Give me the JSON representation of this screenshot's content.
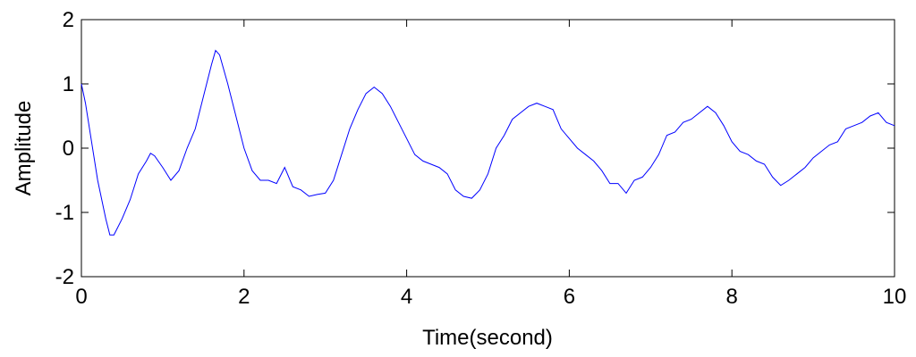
{
  "chart_data": {
    "type": "line",
    "xlabel": "Time(second)",
    "ylabel": "Amplitude",
    "xlim": [
      0,
      10
    ],
    "xticks": [
      0,
      2,
      4,
      6,
      8,
      10
    ],
    "ylim": [
      -2,
      2
    ],
    "yticks": [
      -2,
      -1,
      0,
      1,
      2
    ],
    "grid": false,
    "series": [
      {
        "color": "#0000ff",
        "x": [
          0,
          0.05,
          0.1,
          0.2,
          0.3,
          0.35,
          0.4,
          0.5,
          0.6,
          0.7,
          0.8,
          0.85,
          0.9,
          1.0,
          1.1,
          1.2,
          1.3,
          1.4,
          1.5,
          1.6,
          1.65,
          1.7,
          1.8,
          1.9,
          2.0,
          2.1,
          2.2,
          2.3,
          2.4,
          2.5,
          2.6,
          2.7,
          2.8,
          2.9,
          3.0,
          3.1,
          3.2,
          3.3,
          3.4,
          3.5,
          3.6,
          3.7,
          3.8,
          3.9,
          4.0,
          4.1,
          4.2,
          4.3,
          4.4,
          4.5,
          4.6,
          4.7,
          4.8,
          4.9,
          5.0,
          5.1,
          5.2,
          5.3,
          5.4,
          5.5,
          5.6,
          5.7,
          5.8,
          5.9,
          6.0,
          6.1,
          6.2,
          6.3,
          6.4,
          6.5,
          6.6,
          6.7,
          6.8,
          6.9,
          7.0,
          7.1,
          7.2,
          7.3,
          7.4,
          7.5,
          7.6,
          7.7,
          7.8,
          7.9,
          8.0,
          8.1,
          8.2,
          8.3,
          8.4,
          8.5,
          8.6,
          8.7,
          8.8,
          8.9,
          9.0,
          9.1,
          9.2,
          9.3,
          9.4,
          9.5,
          9.6,
          9.7,
          9.8,
          9.9,
          10.0
        ],
        "values": [
          1.0,
          0.7,
          0.3,
          -0.5,
          -1.1,
          -1.35,
          -1.35,
          -1.1,
          -0.8,
          -0.4,
          -0.2,
          -0.08,
          -0.12,
          -0.3,
          -0.5,
          -0.35,
          0.0,
          0.3,
          0.8,
          1.3,
          1.52,
          1.45,
          1.0,
          0.5,
          0.0,
          -0.35,
          -0.5,
          -0.5,
          -0.55,
          -0.3,
          -0.6,
          -0.65,
          -0.75,
          -0.72,
          -0.7,
          -0.5,
          -0.1,
          0.3,
          0.6,
          0.85,
          0.95,
          0.85,
          0.65,
          0.4,
          0.15,
          -0.1,
          -0.2,
          -0.25,
          -0.3,
          -0.4,
          -0.65,
          -0.75,
          -0.78,
          -0.65,
          -0.4,
          0.0,
          0.2,
          0.45,
          0.55,
          0.65,
          0.7,
          0.65,
          0.6,
          0.3,
          0.15,
          0.0,
          -0.1,
          -0.2,
          -0.35,
          -0.55,
          -0.55,
          -0.7,
          -0.5,
          -0.45,
          -0.3,
          -0.1,
          0.2,
          0.25,
          0.4,
          0.45,
          0.55,
          0.65,
          0.55,
          0.35,
          0.1,
          -0.05,
          -0.1,
          -0.2,
          -0.25,
          -0.45,
          -0.58,
          -0.5,
          -0.4,
          -0.3,
          -0.15,
          -0.05,
          0.05,
          0.1,
          0.3,
          0.35,
          0.4,
          0.5,
          0.55,
          0.4,
          0.35
        ]
      }
    ]
  }
}
